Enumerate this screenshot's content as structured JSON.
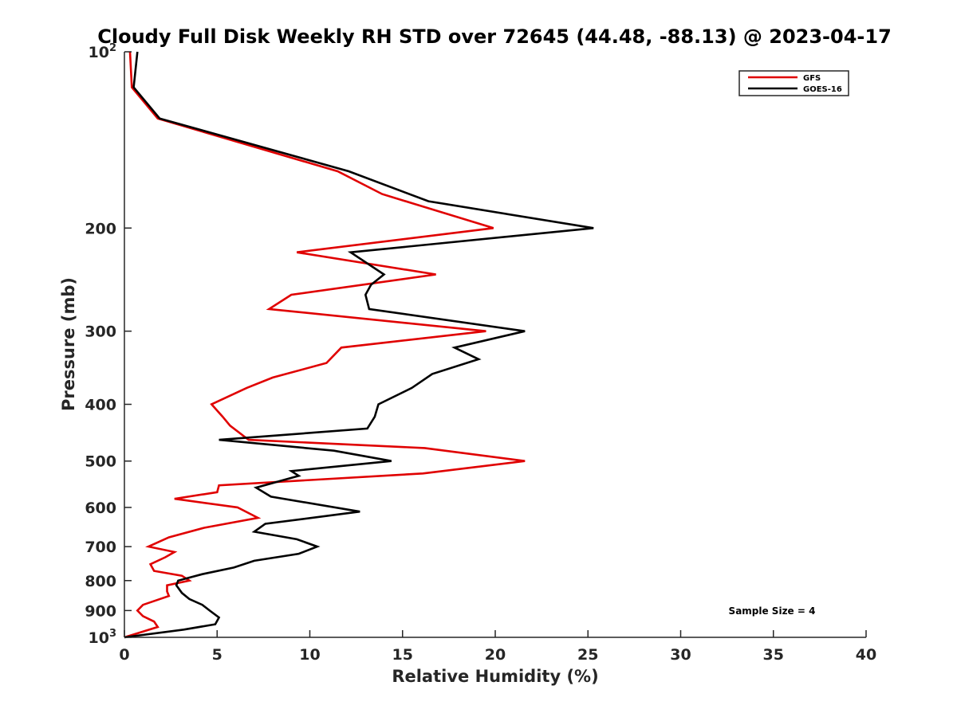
{
  "chart_data": {
    "type": "line",
    "title": "Cloudy Full Disk Weekly RH STD over 72645 (44.48, -88.13) @ 2023-04-17",
    "xlabel": "Relative Humidity (%)",
    "ylabel": "Pressure (mb)",
    "xlim": [
      0,
      40
    ],
    "ylim": [
      100,
      1000
    ],
    "yscale": "log",
    "y_reversed": true,
    "grid": false,
    "legend_position": "top-right",
    "x_ticks": [
      "0",
      "5",
      "10",
      "15",
      "20",
      "25",
      "30",
      "35",
      "40"
    ],
    "y_ticks": [
      {
        "value": 100,
        "base": "10",
        "exp": "2"
      },
      {
        "value": 200,
        "label": "200"
      },
      {
        "value": 300,
        "label": "300"
      },
      {
        "value": 400,
        "label": "400"
      },
      {
        "value": 500,
        "label": "500"
      },
      {
        "value": 600,
        "label": "600"
      },
      {
        "value": 700,
        "label": "700"
      },
      {
        "value": 800,
        "label": "800"
      },
      {
        "value": 900,
        "label": "900"
      },
      {
        "value": 1000,
        "base": "10",
        "exp": "3"
      }
    ],
    "annotation": "Sample Size = 4",
    "series": [
      {
        "name": "GFS",
        "color": "#e00000",
        "points": [
          [
            0.3,
            100
          ],
          [
            0.4,
            115
          ],
          [
            1.8,
            130
          ],
          [
            11.5,
            160
          ],
          [
            13.9,
            175
          ],
          [
            19.9,
            200
          ],
          [
            9.3,
            220
          ],
          [
            16.8,
            240
          ],
          [
            9.0,
            260
          ],
          [
            7.8,
            275
          ],
          [
            19.5,
            300
          ],
          [
            11.7,
            320
          ],
          [
            10.9,
            340
          ],
          [
            8.0,
            360
          ],
          [
            6.6,
            375
          ],
          [
            4.7,
            400
          ],
          [
            5.3,
            420
          ],
          [
            5.7,
            435
          ],
          [
            6.7,
            460
          ],
          [
            16.2,
            475
          ],
          [
            21.6,
            500
          ],
          [
            16.1,
            525
          ],
          [
            5.1,
            550
          ],
          [
            5.0,
            565
          ],
          [
            2.7,
            580
          ],
          [
            6.1,
            600
          ],
          [
            7.2,
            625
          ],
          [
            4.3,
            650
          ],
          [
            2.4,
            675
          ],
          [
            1.3,
            700
          ],
          [
            2.7,
            715
          ],
          [
            2.2,
            730
          ],
          [
            1.4,
            750
          ],
          [
            1.6,
            770
          ],
          [
            3.1,
            785
          ],
          [
            3.5,
            800
          ],
          [
            2.3,
            815
          ],
          [
            2.3,
            835
          ],
          [
            2.4,
            850
          ],
          [
            1.0,
            880
          ],
          [
            0.7,
            900
          ],
          [
            1.0,
            920
          ],
          [
            1.6,
            940
          ],
          [
            1.8,
            960
          ],
          [
            0.0,
            1000
          ]
        ]
      },
      {
        "name": "GOES-16",
        "color": "#000000",
        "points": [
          [
            0.7,
            100
          ],
          [
            0.5,
            115
          ],
          [
            1.9,
            130
          ],
          [
            12.1,
            160
          ],
          [
            16.4,
            180
          ],
          [
            25.3,
            200
          ],
          [
            12.2,
            220
          ],
          [
            14.0,
            240
          ],
          [
            13.3,
            250
          ],
          [
            13.0,
            260
          ],
          [
            13.2,
            275
          ],
          [
            21.6,
            300
          ],
          [
            17.8,
            320
          ],
          [
            19.1,
            335
          ],
          [
            16.6,
            355
          ],
          [
            15.5,
            375
          ],
          [
            13.7,
            400
          ],
          [
            13.5,
            420
          ],
          [
            13.1,
            440
          ],
          [
            5.1,
            460
          ],
          [
            11.3,
            480
          ],
          [
            14.4,
            500
          ],
          [
            9.0,
            520
          ],
          [
            9.4,
            530
          ],
          [
            7.1,
            555
          ],
          [
            7.9,
            575
          ],
          [
            12.7,
            610
          ],
          [
            7.6,
            640
          ],
          [
            7.0,
            660
          ],
          [
            9.3,
            680
          ],
          [
            10.4,
            700
          ],
          [
            9.4,
            720
          ],
          [
            7.0,
            740
          ],
          [
            5.9,
            760
          ],
          [
            4.2,
            780
          ],
          [
            2.9,
            800
          ],
          [
            2.8,
            815
          ],
          [
            3.1,
            840
          ],
          [
            3.5,
            860
          ],
          [
            4.2,
            880
          ],
          [
            4.6,
            900
          ],
          [
            5.1,
            925
          ],
          [
            4.9,
            950
          ],
          [
            3.2,
            970
          ],
          [
            0.0,
            1000
          ]
        ]
      }
    ]
  }
}
